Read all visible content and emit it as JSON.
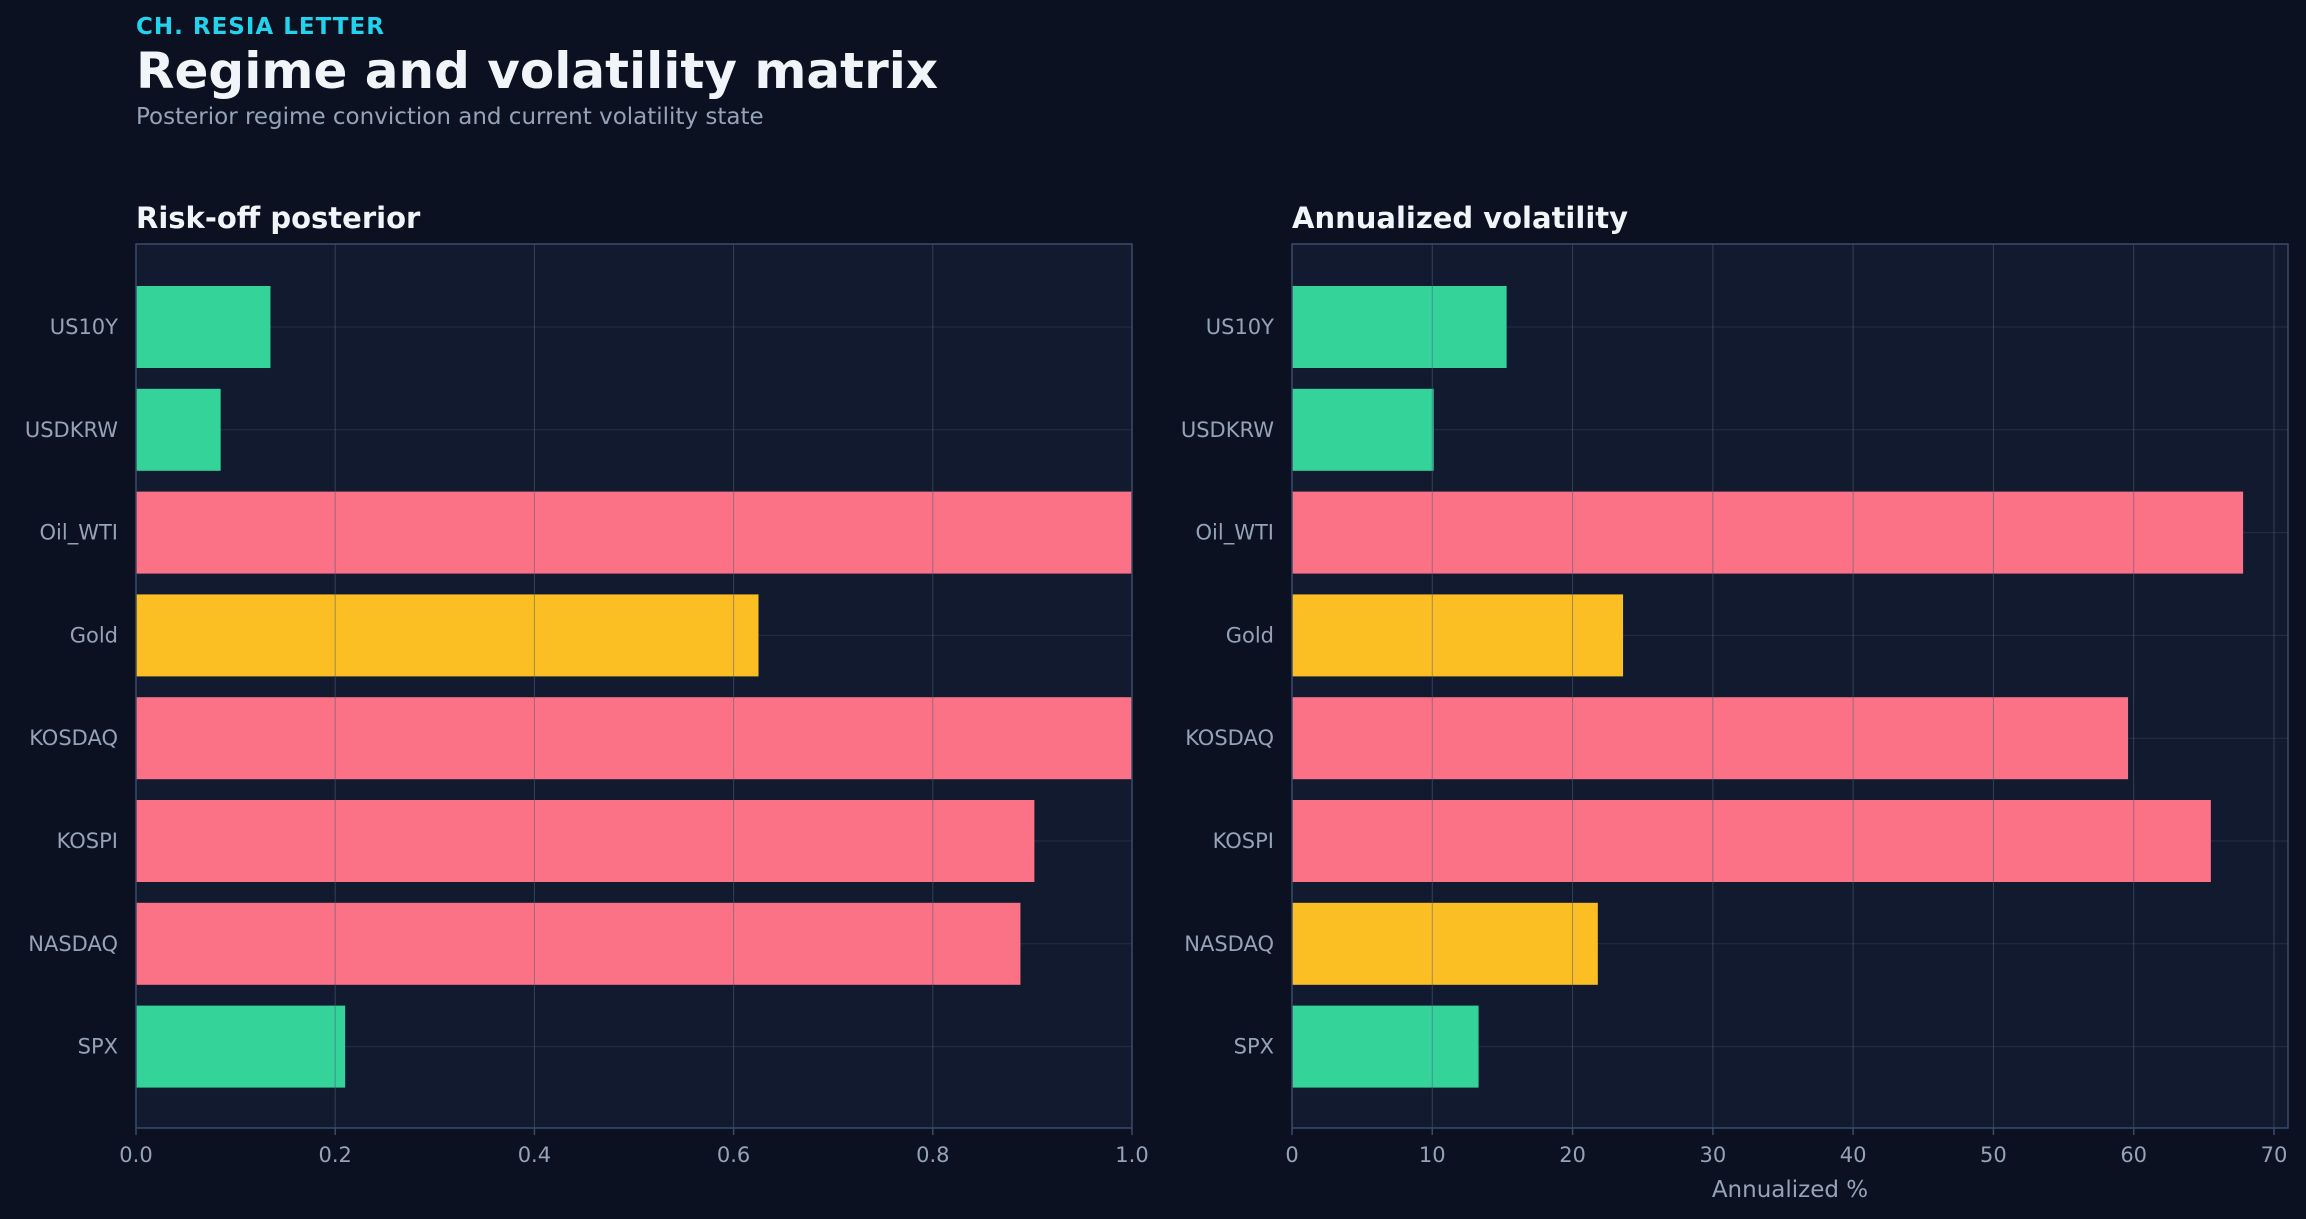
{
  "header": {
    "eyebrow": "CH. RESIA LETTER",
    "title": "Regime and volatility matrix",
    "subtitle": "Posterior regime conviction and current volatility state"
  },
  "colors": {
    "background": "#0b1120",
    "panel": "#111a2e",
    "green": "#34d399",
    "red": "#fb7185",
    "amber": "#fbbf24",
    "grid": "#243049",
    "axis": "#3b4a6b",
    "tick_text": "#94a3b8",
    "title_text": "#f1f5f9"
  },
  "chart_data": [
    {
      "type": "bar",
      "orientation": "horizontal",
      "title": "Risk-off posterior",
      "xlabel": "",
      "xlim": [
        0,
        1.0
      ],
      "xticks": [
        "0.0",
        "0.2",
        "0.4",
        "0.6",
        "0.8",
        "1.0"
      ],
      "xtick_values": [
        0,
        0.2,
        0.4,
        0.6,
        0.8,
        1.0
      ],
      "grid": true,
      "categories": [
        "US10Y",
        "USDKRW",
        "Oil_WTI",
        "Gold",
        "KOSDAQ",
        "KOSPI",
        "NASDAQ",
        "SPX"
      ],
      "values": [
        0.135,
        0.085,
        1.0,
        0.625,
        1.0,
        0.902,
        0.888,
        0.21
      ],
      "bar_colors": [
        "green",
        "green",
        "red",
        "amber",
        "red",
        "red",
        "red",
        "green"
      ]
    },
    {
      "type": "bar",
      "orientation": "horizontal",
      "title": "Annualized volatility",
      "xlabel": "Annualized %",
      "xlim": [
        0,
        71
      ],
      "xticks": [
        "0",
        "10",
        "20",
        "30",
        "40",
        "50",
        "60",
        "70"
      ],
      "xtick_values": [
        0,
        10,
        20,
        30,
        40,
        50,
        60,
        70
      ],
      "grid": true,
      "categories": [
        "US10Y",
        "USDKRW",
        "Oil_WTI",
        "Gold",
        "KOSDAQ",
        "KOSPI",
        "NASDAQ",
        "SPX"
      ],
      "values": [
        15.3,
        10.1,
        67.8,
        23.6,
        59.6,
        65.5,
        21.8,
        13.3
      ],
      "bar_colors": [
        "green",
        "green",
        "red",
        "amber",
        "red",
        "red",
        "amber",
        "green"
      ]
    }
  ]
}
